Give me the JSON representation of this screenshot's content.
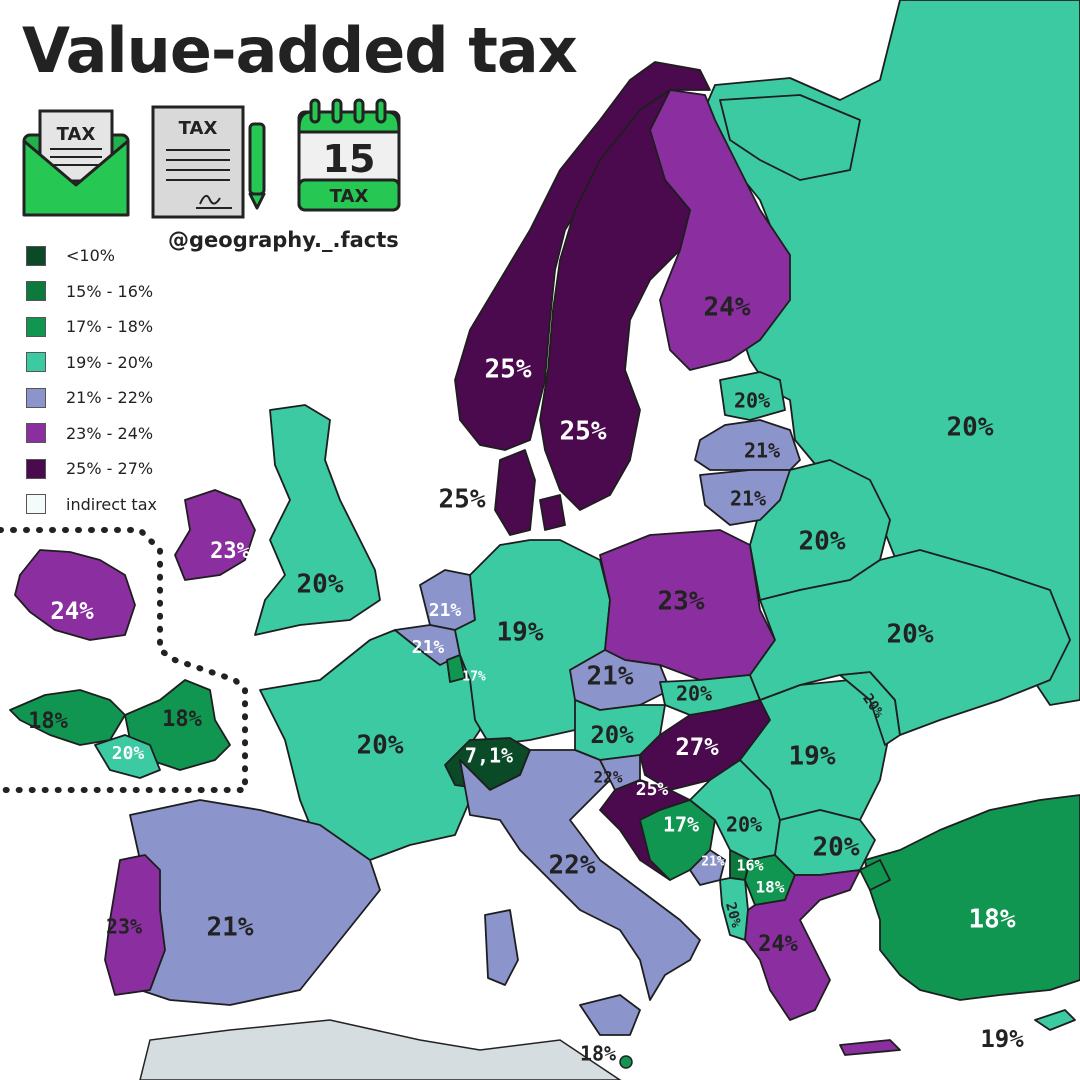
{
  "title": "Value-added tax",
  "credit": "@geography._.facts",
  "icons": [
    {
      "name": "envelope-tax-icon",
      "text": "TAX"
    },
    {
      "name": "tax-document-icon",
      "text": "TAX"
    },
    {
      "name": "calendar-icon",
      "day": "15",
      "text": "TAX"
    }
  ],
  "legend": [
    {
      "label": "<10%",
      "color": "#0b4a27"
    },
    {
      "label": "15% - 16%",
      "color": "#0b7a3c"
    },
    {
      "label": "17% - 18%",
      "color": "#119652"
    },
    {
      "label": "19% - 20%",
      "color": "#3ccaa3"
    },
    {
      "label": "21% - 22%",
      "color": "#8c94cc"
    },
    {
      "label": "23% - 24%",
      "color": "#8b2fa0"
    },
    {
      "label": "25% - 27%",
      "color": "#4b0a4e"
    },
    {
      "label": "indirect tax",
      "color": "#f4fbfb"
    }
  ],
  "countries": [
    {
      "name": "iceland",
      "label": "24%",
      "fill": "#8b2fa0",
      "text": "#ffffff"
    },
    {
      "name": "ireland",
      "label": "23%",
      "fill": "#8b2fa0",
      "text": "#ffffff"
    },
    {
      "name": "united-kingdom",
      "label": "20%",
      "fill": "#3ccaa3",
      "text": "#222222"
    },
    {
      "name": "norway",
      "label": "25%",
      "fill": "#4b0a4e",
      "text": "#ffffff"
    },
    {
      "name": "sweden",
      "label": "25%",
      "fill": "#4b0a4e",
      "text": "#ffffff"
    },
    {
      "name": "denmark",
      "label": "25%",
      "fill": "#4b0a4e",
      "text": "#222222"
    },
    {
      "name": "finland",
      "label": "24%",
      "fill": "#8b2fa0",
      "text": "#222222"
    },
    {
      "name": "russia",
      "label": "20%",
      "fill": "#3ccaa3",
      "text": "#222222"
    },
    {
      "name": "estonia",
      "label": "20%",
      "fill": "#3ccaa3",
      "text": "#222222"
    },
    {
      "name": "latvia",
      "label": "21%",
      "fill": "#8c94cc",
      "text": "#222222"
    },
    {
      "name": "lithuania",
      "label": "21%",
      "fill": "#8c94cc",
      "text": "#222222"
    },
    {
      "name": "belarus",
      "label": "20%",
      "fill": "#3ccaa3",
      "text": "#222222"
    },
    {
      "name": "ukraine",
      "label": "20%",
      "fill": "#3ccaa3",
      "text": "#222222"
    },
    {
      "name": "poland",
      "label": "23%",
      "fill": "#8b2fa0",
      "text": "#222222"
    },
    {
      "name": "germany",
      "label": "19%",
      "fill": "#3ccaa3",
      "text": "#222222"
    },
    {
      "name": "netherlands",
      "label": "21%",
      "fill": "#8c94cc",
      "text": "#ffffff"
    },
    {
      "name": "belgium",
      "label": "21%",
      "fill": "#8c94cc",
      "text": "#ffffff"
    },
    {
      "name": "luxembourg",
      "label": "17%",
      "fill": "#119652",
      "text": "#ffffff"
    },
    {
      "name": "france",
      "label": "20%",
      "fill": "#3ccaa3",
      "text": "#222222"
    },
    {
      "name": "faroe-islands",
      "label": "18%",
      "fill": "#119652",
      "text": "#222222"
    },
    {
      "name": "greenland-inset",
      "label": "18%",
      "fill": "#119652",
      "text": "#222222"
    },
    {
      "name": "inset-south",
      "label": "20%",
      "fill": "#3ccaa3",
      "text": "#ffffff"
    },
    {
      "name": "spain",
      "label": "21%",
      "fill": "#8c94cc",
      "text": "#222222"
    },
    {
      "name": "portugal",
      "label": "23%",
      "fill": "#8b2fa0",
      "text": "#222222"
    },
    {
      "name": "switzerland",
      "label": "7,1%",
      "fill": "#0b4a27",
      "text": "#ffffff"
    },
    {
      "name": "italy",
      "label": "22%",
      "fill": "#8c94cc",
      "text": "#222222"
    },
    {
      "name": "malta",
      "label": "18%",
      "fill": "#119652",
      "text": "#222222"
    },
    {
      "name": "czechia",
      "label": "21%",
      "fill": "#8c94cc",
      "text": "#222222"
    },
    {
      "name": "slovakia",
      "label": "20%",
      "fill": "#3ccaa3",
      "text": "#222222"
    },
    {
      "name": "austria",
      "label": "20%",
      "fill": "#3ccaa3",
      "text": "#222222"
    },
    {
      "name": "hungary",
      "label": "27%",
      "fill": "#4b0a4e",
      "text": "#ffffff"
    },
    {
      "name": "slovenia",
      "label": "22%",
      "fill": "#8c94cc",
      "text": "#222222"
    },
    {
      "name": "croatia",
      "label": "25%",
      "fill": "#4b0a4e",
      "text": "#ffffff"
    },
    {
      "name": "bosnia",
      "label": "17%",
      "fill": "#119652",
      "text": "#ffffff"
    },
    {
      "name": "serbia",
      "label": "20%",
      "fill": "#3ccaa3",
      "text": "#222222"
    },
    {
      "name": "montenegro",
      "label": "21%",
      "fill": "#8c94cc",
      "text": "#ffffff"
    },
    {
      "name": "kosovo",
      "label": "16%",
      "fill": "#0b7a3c",
      "text": "#ffffff"
    },
    {
      "name": "north-macedonia",
      "label": "18%",
      "fill": "#119652",
      "text": "#ffffff"
    },
    {
      "name": "albania",
      "label": "20%",
      "fill": "#3ccaa3",
      "text": "#222222"
    },
    {
      "name": "romania",
      "label": "19%",
      "fill": "#3ccaa3",
      "text": "#222222"
    },
    {
      "name": "moldova",
      "label": "20%",
      "fill": "#3ccaa3",
      "text": "#222222"
    },
    {
      "name": "bulgaria",
      "label": "20%",
      "fill": "#3ccaa3",
      "text": "#222222"
    },
    {
      "name": "greece",
      "label": "24%",
      "fill": "#8b2fa0",
      "text": "#222222"
    },
    {
      "name": "turkey",
      "label": "18%",
      "fill": "#119652",
      "text": "#ffffff"
    },
    {
      "name": "cyprus",
      "label": "19%",
      "fill": "#3ccaa3",
      "text": "#222222"
    }
  ]
}
